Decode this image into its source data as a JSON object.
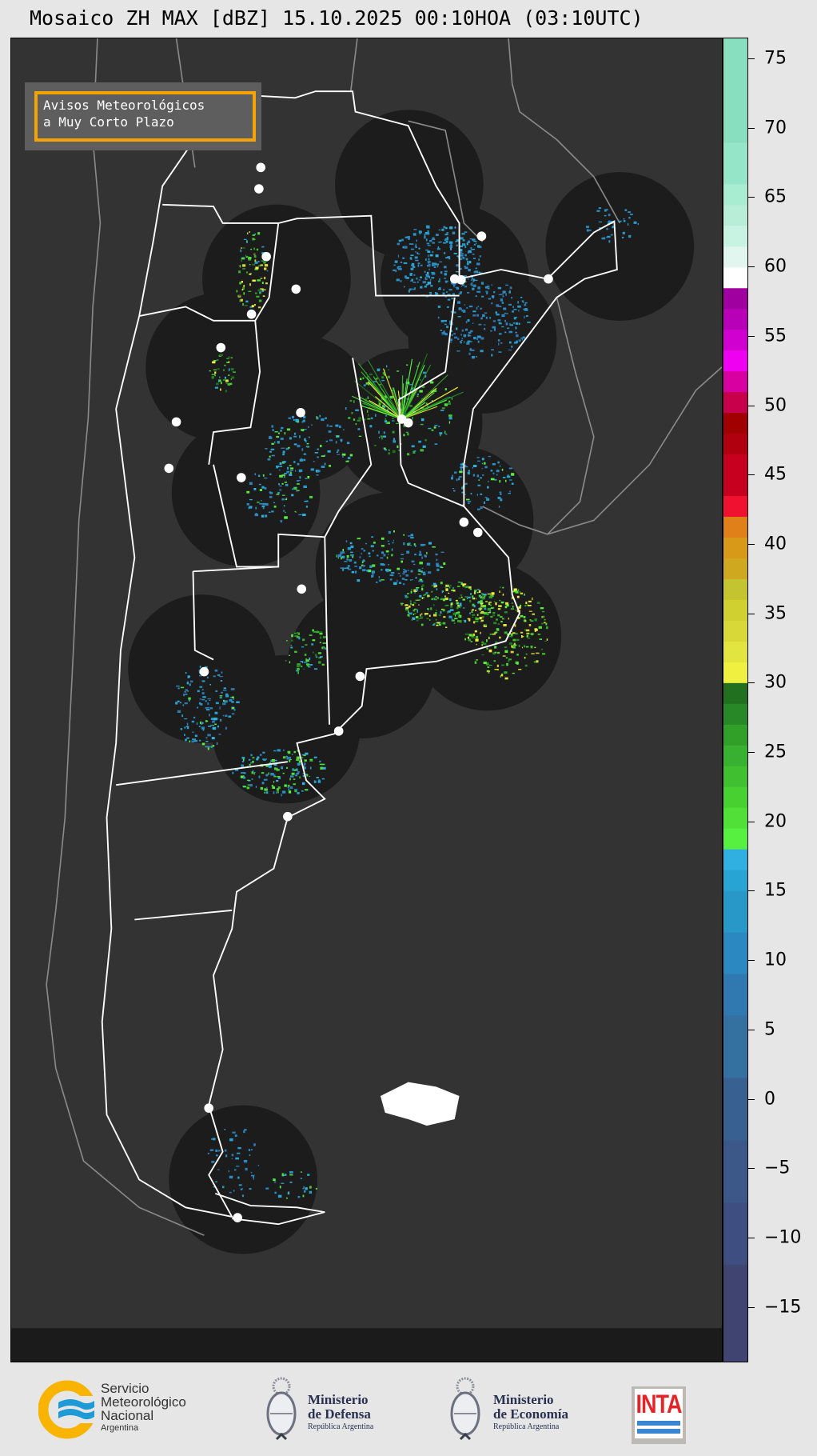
{
  "title": "Mosaico ZH MAX [dBZ] 15.10.2025 00:10HOA (03:10UTC)",
  "legend_box": {
    "line1": "Avisos Meteorológicos",
    "line2": "a Muy Corto Plazo",
    "border_color": "#f5a300"
  },
  "colorbar": {
    "unit": "dBZ",
    "range": [
      -19,
      76.5
    ],
    "ticks": [
      75,
      70,
      65,
      60,
      55,
      50,
      45,
      40,
      35,
      30,
      25,
      20,
      15,
      10,
      5,
      0,
      -5,
      -10,
      -15
    ],
    "tick_labels": [
      "75",
      "70",
      "65",
      "60",
      "55",
      "50",
      "45",
      "40",
      "35",
      "30",
      "25",
      "20",
      "15",
      "10",
      "5",
      "0",
      "−5",
      "−10",
      "−15"
    ],
    "segments": [
      {
        "from": -19,
        "to": -12,
        "color": "#404470"
      },
      {
        "from": -12,
        "to": -7.5,
        "color": "#3e4e80"
      },
      {
        "from": -7.5,
        "to": -3,
        "color": "#3c5888"
      },
      {
        "from": -3,
        "to": 1.5,
        "color": "#386090"
      },
      {
        "from": 1.5,
        "to": 6,
        "color": "#3470a0"
      },
      {
        "from": 6,
        "to": 9,
        "color": "#3078b0"
      },
      {
        "from": 9,
        "to": 12,
        "color": "#2c88c0"
      },
      {
        "from": 12,
        "to": 15,
        "color": "#2898c8"
      },
      {
        "from": 15,
        "to": 16.5,
        "color": "#28a4d4"
      },
      {
        "from": 16.5,
        "to": 18,
        "color": "#30b0e0"
      },
      {
        "from": 18,
        "to": 19.5,
        "color": "#58f040"
      },
      {
        "from": 19.5,
        "to": 21,
        "color": "#50e038"
      },
      {
        "from": 21,
        "to": 22.5,
        "color": "#48d030"
      },
      {
        "from": 22.5,
        "to": 24,
        "color": "#40c030"
      },
      {
        "from": 24,
        "to": 25.5,
        "color": "#38b030"
      },
      {
        "from": 25.5,
        "to": 27,
        "color": "#30a028"
      },
      {
        "from": 27,
        "to": 28.5,
        "color": "#288828"
      },
      {
        "from": 28.5,
        "to": 30,
        "color": "#207020"
      },
      {
        "from": 30,
        "to": 31.5,
        "color": "#f0f040"
      },
      {
        "from": 31.5,
        "to": 33,
        "color": "#e2e440"
      },
      {
        "from": 33,
        "to": 34.5,
        "color": "#d8d838"
      },
      {
        "from": 34.5,
        "to": 36,
        "color": "#d0d030"
      },
      {
        "from": 36,
        "to": 37.5,
        "color": "#c4c430"
      },
      {
        "from": 37.5,
        "to": 39,
        "color": "#d0a820"
      },
      {
        "from": 39,
        "to": 40.5,
        "color": "#d89818"
      },
      {
        "from": 40.5,
        "to": 42,
        "color": "#e08018"
      },
      {
        "from": 42,
        "to": 43.5,
        "color": "#f01030"
      },
      {
        "from": 43.5,
        "to": 46.5,
        "color": "#c80020"
      },
      {
        "from": 46.5,
        "to": 48,
        "color": "#b00010"
      },
      {
        "from": 48,
        "to": 49.5,
        "color": "#a00000"
      },
      {
        "from": 49.5,
        "to": 51,
        "color": "#c8004c"
      },
      {
        "from": 51,
        "to": 52.5,
        "color": "#d800a0"
      },
      {
        "from": 52.5,
        "to": 54,
        "color": "#f000f0"
      },
      {
        "from": 54,
        "to": 55.5,
        "color": "#d000d0"
      },
      {
        "from": 55.5,
        "to": 57,
        "color": "#b800b8"
      },
      {
        "from": 57,
        "to": 58.5,
        "color": "#a000a0"
      },
      {
        "from": 58.5,
        "to": 60,
        "color": "#ffffff"
      },
      {
        "from": 60,
        "to": 61.5,
        "color": "#e0f6ee"
      },
      {
        "from": 61.5,
        "to": 63,
        "color": "#c8f2e2"
      },
      {
        "from": 63,
        "to": 64.5,
        "color": "#b8eed8"
      },
      {
        "from": 64.5,
        "to": 66,
        "color": "#a8ecd2"
      },
      {
        "from": 66,
        "to": 69,
        "color": "#95e5c8"
      },
      {
        "from": 69,
        "to": 76.5,
        "color": "#88dfc0"
      }
    ]
  },
  "map": {
    "background": "#333333",
    "coverage_color": "#1c1c1c",
    "border_color": "#ffffff",
    "neighbor_border_color": "#8a8a8a",
    "radar_site_color": "#ffffff"
  },
  "footer": {
    "smn": {
      "line1": "Servicio",
      "line2": "Meteorológico",
      "line3": "Nacional",
      "line4": "Argentina"
    },
    "defensa": {
      "line1": "Ministerio",
      "line2": "de Defensa",
      "line3": "República Argentina"
    },
    "economia": {
      "line1": "Ministerio",
      "line2": "de Economía",
      "line3": "República Argentina"
    },
    "inta": {
      "label": "INTA"
    }
  }
}
